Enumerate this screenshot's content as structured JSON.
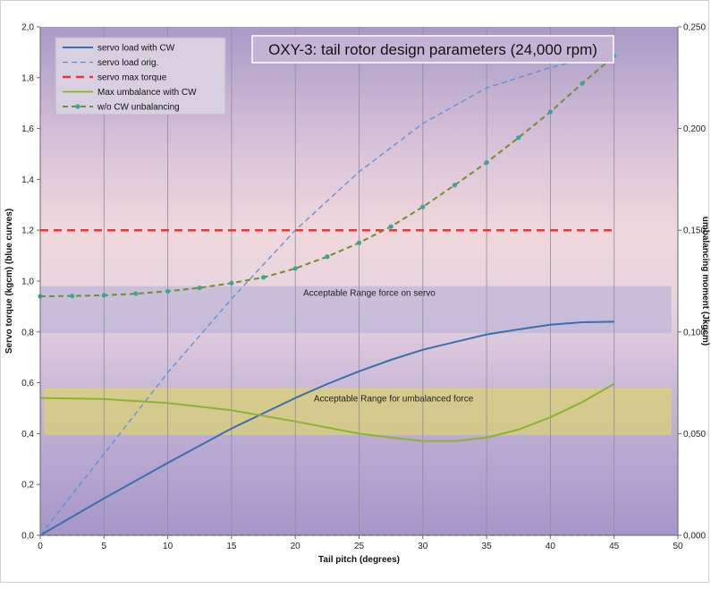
{
  "chart_data": {
    "type": "line",
    "title": "OXY-3:  tail rotor design parameters (24,000 rpm)",
    "xlabel": "Tail pitch (degrees)",
    "ylabel": "Servo torque (kgcm)  (blue curves)",
    "y2label": "umbalancing moment (Jkgcm)",
    "xlim": [
      0,
      50
    ],
    "ylim": [
      0,
      2.0
    ],
    "y2lim": [
      0,
      0.25
    ],
    "x_ticks": [
      "0",
      "5",
      "10",
      "15",
      "20",
      "25",
      "30",
      "35",
      "40",
      "45",
      "50"
    ],
    "y_ticks": [
      "0,0",
      "0,2",
      "0,4",
      "0,6",
      "0,8",
      "1,0",
      "1,2",
      "1,4",
      "1,6",
      "1,8",
      "2,0"
    ],
    "y2_ticks": [
      "0,000",
      "0,050",
      "0,100",
      "0,150",
      "0,200",
      "0,250"
    ],
    "grid": "vertical",
    "legend_position": "top-left",
    "colors": {
      "servo_cw": "#3a6fb0",
      "servo_orig": "#5b8ed8",
      "servo_max": "#ee3333",
      "umb_cw": "#8ab533",
      "umb_orig": "#6f8f2a",
      "umb_orig_marker": "#3aa69a",
      "band_servo": "#b8b4d8",
      "band_umb": "#d9cf7a"
    },
    "series": [
      {
        "name": "servo load with CW",
        "axis": "left",
        "style": "solid",
        "x": [
          0,
          5,
          10,
          15,
          20,
          22.5,
          25,
          27.5,
          30,
          35,
          37.5,
          40,
          42.5,
          45
        ],
        "values": [
          0.0,
          0.145,
          0.285,
          0.42,
          0.54,
          0.595,
          0.645,
          0.69,
          0.73,
          0.79,
          0.81,
          0.828,
          0.838,
          0.84
        ]
      },
      {
        "name": "servo load orig.",
        "axis": "left",
        "style": "dashed",
        "x": [
          0,
          5,
          10,
          15,
          20,
          25,
          30,
          35,
          40,
          42.5,
          45
        ],
        "values": [
          0.0,
          0.32,
          0.64,
          0.93,
          1.2,
          1.43,
          1.62,
          1.76,
          1.84,
          1.87,
          1.88
        ]
      },
      {
        "name": "servo max torque",
        "axis": "left",
        "style": "dashed-thick",
        "x": [
          0,
          45
        ],
        "values": [
          1.2,
          1.2
        ]
      },
      {
        "name": "Max umbalance with CW",
        "axis": "right",
        "style": "solid",
        "x": [
          0,
          5,
          10,
          15,
          20,
          25,
          27.5,
          30,
          32.5,
          35,
          37.5,
          40,
          42.5,
          45
        ],
        "values": [
          0.0675,
          0.067,
          0.065,
          0.0615,
          0.056,
          0.05,
          0.048,
          0.0463,
          0.0463,
          0.048,
          0.052,
          0.058,
          0.0655,
          0.0745
        ]
      },
      {
        "name": "w/o CW unbalancing",
        "axis": "right",
        "style": "dashed-markers",
        "x": [
          0,
          2.5,
          5,
          7.5,
          10,
          12.5,
          15,
          17.5,
          20,
          22.5,
          25,
          27.5,
          30,
          32.5,
          35,
          37.5,
          40,
          42.5,
          45
        ],
        "values": [
          0.1175,
          0.1177,
          0.118,
          0.1188,
          0.12,
          0.1217,
          0.124,
          0.1268,
          0.1312,
          0.137,
          0.1438,
          0.1518,
          0.1615,
          0.1722,
          0.1833,
          0.1955,
          0.2082,
          0.2222,
          0.2357
        ]
      },
      {
        "name": "",
        "axis": "left",
        "style": "dashed-flat",
        "x": [
          0,
          45
        ],
        "values": [
          0.0,
          0.0
        ]
      }
    ],
    "bands": [
      {
        "label": "Acceptable Range  force on servo",
        "x": [
          0,
          49.5
        ],
        "y": [
          0.795,
          0.98
        ],
        "axis": "left"
      },
      {
        "label": "Acceptable Range for umbalanced force",
        "x": [
          0.3,
          49.5
        ],
        "y": [
          0.395,
          0.58
        ],
        "axis": "left"
      }
    ]
  }
}
